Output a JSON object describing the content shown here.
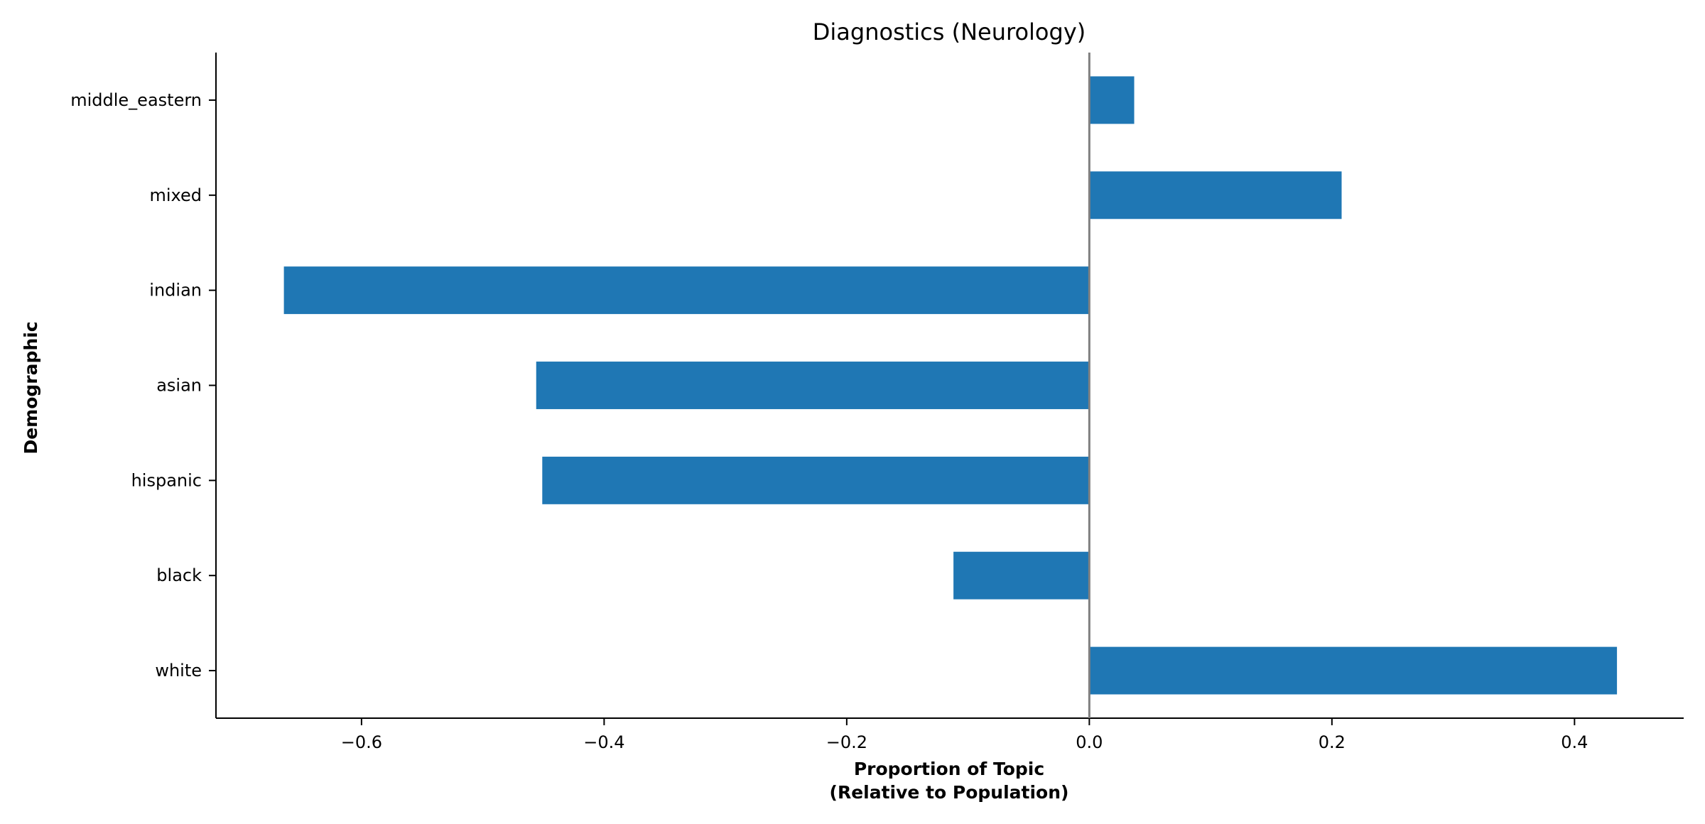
{
  "chart_data": {
    "type": "bar",
    "orientation": "horizontal",
    "title": "Diagnostics (Neurology)",
    "xlabel_line1": "Proportion of Topic",
    "xlabel_line2": "(Relative to Population)",
    "ylabel": "Demographic",
    "categories": [
      "white",
      "black",
      "hispanic",
      "asian",
      "indian",
      "mixed",
      "middle_eastern"
    ],
    "values": [
      0.435,
      -0.112,
      -0.451,
      -0.456,
      -0.664,
      0.208,
      0.037
    ],
    "xlim": [
      -0.72,
      0.49
    ],
    "xticks": [
      -0.6,
      -0.4,
      -0.2,
      0.0,
      0.2,
      0.4
    ],
    "xtick_labels": [
      "−0.6",
      "−0.4",
      "−0.2",
      "0.0",
      "0.2",
      "0.4"
    ],
    "bar_color": "#1f77b4",
    "zero_line_color": "#808080",
    "grid": false,
    "legend": "none"
  }
}
